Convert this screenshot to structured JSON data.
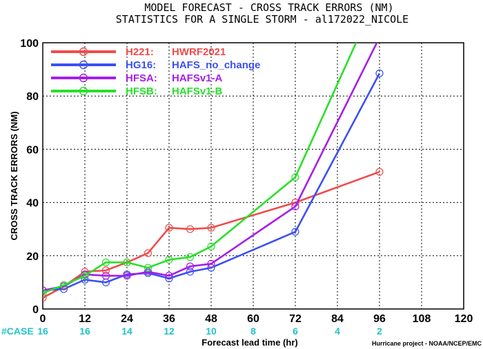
{
  "chart_data": {
    "type": "line",
    "title": "MODEL FORECAST - CROSS TRACK ERRORS (NM)",
    "subtitle": "STATISTICS FOR A SINGLE STORM - al172022_NICOLE",
    "xlabel": "Forecast lead time (hr)",
    "ylabel": "CROSS TRACK ERRORS (NM)",
    "xlim": [
      0,
      120
    ],
    "ylim": [
      0,
      100
    ],
    "xticks": [
      "0",
      "12",
      "24",
      "36",
      "48",
      "60",
      "72",
      "84",
      "96",
      "108",
      "120"
    ],
    "yticks": [
      "0",
      "20",
      "40",
      "60",
      "80",
      "100"
    ],
    "cases": {
      "label": "#CASE",
      "x": [
        0,
        12,
        24,
        36,
        48,
        60,
        72,
        84,
        96
      ],
      "values": [
        "16",
        "16",
        "14",
        "12",
        "10",
        "8",
        "6",
        "4",
        "2"
      ]
    },
    "legend_position": "top-left",
    "series": [
      {
        "name": "H221:",
        "label": "HWRF2021",
        "color": "#f04b4b",
        "x": [
          0,
          6,
          12,
          18,
          24,
          30,
          36,
          42,
          48,
          72,
          96
        ],
        "values": [
          4.2,
          8.5,
          14.0,
          14.5,
          17.5,
          21.0,
          30.5,
          30.0,
          30.5,
          40.0,
          51.5
        ]
      },
      {
        "name": "HG16:",
        "label": "HAFS_no_change",
        "color": "#3c50f0",
        "x": [
          0,
          6,
          12,
          18,
          24,
          30,
          36,
          42,
          48,
          72,
          96
        ],
        "values": [
          7.0,
          7.5,
          11.0,
          10.0,
          13.0,
          13.5,
          11.5,
          14.0,
          15.5,
          29.0,
          88.5
        ]
      },
      {
        "name": "HFSA:",
        "label": "HAFSv1-A",
        "color": "#a61ee8",
        "x": [
          0,
          6,
          12,
          18,
          24,
          30,
          36,
          42,
          48,
          72,
          96
        ],
        "values": [
          7.0,
          8.5,
          13.0,
          12.5,
          12.5,
          14.0,
          12.5,
          16.0,
          17.0,
          38.5,
          102.0
        ]
      },
      {
        "name": "HFSB:",
        "label": "HAFSv1-B",
        "color": "#28e028",
        "x": [
          0,
          6,
          12,
          18,
          24,
          30,
          36,
          42,
          48,
          72,
          90
        ],
        "values": [
          6.0,
          9.0,
          12.5,
          17.5,
          17.5,
          15.5,
          18.5,
          19.5,
          23.5,
          49.5,
          102.0
        ]
      }
    ],
    "credit": "Hurricane project - NOAA/NCEP/EMC"
  }
}
